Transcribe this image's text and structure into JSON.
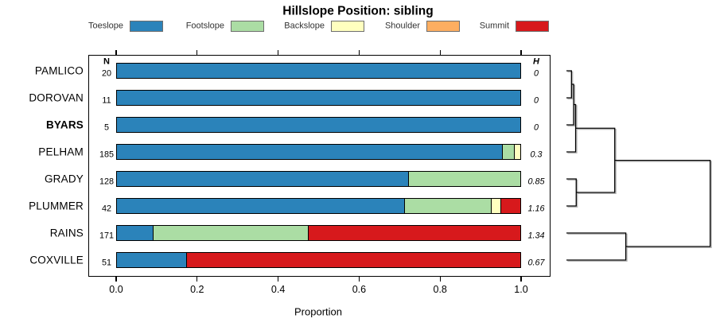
{
  "title": "Hillslope Position: sibling",
  "xlabel": "Proportion",
  "x_ticks": [
    "0.0",
    "0.2",
    "0.4",
    "0.6",
    "0.8",
    "1.0"
  ],
  "columns": {
    "n_header": "N",
    "h_header": "H"
  },
  "legend": [
    {
      "label": "Toeslope",
      "color": "#2B83BA"
    },
    {
      "label": "Footslope",
      "color": "#ABDDA4"
    },
    {
      "label": "Backslope",
      "color": "#FFFFBF"
    },
    {
      "label": "Shoulder",
      "color": "#FDAE61"
    },
    {
      "label": "Summit",
      "color": "#D7191C"
    }
  ],
  "rows": [
    {
      "name": "PAMLICO",
      "bold": false,
      "n": "20",
      "h": "0",
      "segments": [
        [
          "Toeslope",
          1.0
        ]
      ]
    },
    {
      "name": "DOROVAN",
      "bold": false,
      "n": "11",
      "h": "0",
      "segments": [
        [
          "Toeslope",
          1.0
        ]
      ]
    },
    {
      "name": "BYARS",
      "bold": true,
      "n": "5",
      "h": "0",
      "segments": [
        [
          "Toeslope",
          1.0
        ]
      ]
    },
    {
      "name": "PELHAM",
      "bold": false,
      "n": "185",
      "h": "0.3",
      "segments": [
        [
          "Toeslope",
          0.955
        ],
        [
          "Footslope",
          0.03
        ],
        [
          "Backslope",
          0.015
        ]
      ]
    },
    {
      "name": "GRADY",
      "bold": false,
      "n": "128",
      "h": "0.85",
      "segments": [
        [
          "Toeslope",
          0.723
        ],
        [
          "Footslope",
          0.277
        ]
      ]
    },
    {
      "name": "PLUMMER",
      "bold": false,
      "n": "42",
      "h": "1.16",
      "segments": [
        [
          "Toeslope",
          0.714
        ],
        [
          "Footslope",
          0.214
        ],
        [
          "Backslope",
          0.024
        ],
        [
          "Summit",
          0.048
        ]
      ]
    },
    {
      "name": "RAINS",
      "bold": false,
      "n": "171",
      "h": "1.34",
      "segments": [
        [
          "Toeslope",
          0.093
        ],
        [
          "Footslope",
          0.383
        ],
        [
          "Summit",
          0.524
        ]
      ]
    },
    {
      "name": "COXVILLE",
      "bold": false,
      "n": "51",
      "h": "0.67",
      "segments": [
        [
          "Toeslope",
          0.176
        ],
        [
          "Summit",
          0.824
        ]
      ]
    }
  ],
  "dendrogram": {
    "merges": [
      {
        "a": "PAMLICO",
        "b": "DOROVAN",
        "h": 0.035
      },
      {
        "a": "@0",
        "b": "BYARS",
        "h": 0.05
      },
      {
        "a": "@1",
        "b": "PELHAM",
        "h": 0.064
      },
      {
        "a": "GRADY",
        "b": "PLUMMER",
        "h": 0.068
      },
      {
        "a": "@2",
        "b": "@3",
        "h": 0.336
      },
      {
        "a": "RAINS",
        "b": "COXVILLE",
        "h": 0.413
      },
      {
        "a": "@4",
        "b": "@5",
        "h": 1.0
      }
    ]
  },
  "chart_data": {
    "type": "bar",
    "orientation": "horizontal-stacked",
    "title": "Hillslope Position: sibling",
    "xlabel": "Proportion",
    "xlim": [
      0,
      1
    ],
    "grid": false,
    "legend_position": "top",
    "categories": [
      "PAMLICO",
      "DOROVAN",
      "BYARS",
      "PELHAM",
      "GRADY",
      "PLUMMER",
      "RAINS",
      "COXVILLE"
    ],
    "series": [
      {
        "name": "Toeslope",
        "color": "#2B83BA",
        "values": [
          1.0,
          1.0,
          1.0,
          0.955,
          0.723,
          0.714,
          0.093,
          0.176
        ]
      },
      {
        "name": "Footslope",
        "color": "#ABDDA4",
        "values": [
          0,
          0,
          0,
          0.03,
          0.277,
          0.214,
          0.383,
          0
        ]
      },
      {
        "name": "Backslope",
        "color": "#FFFFBF",
        "values": [
          0,
          0,
          0,
          0.015,
          0,
          0.024,
          0,
          0
        ]
      },
      {
        "name": "Shoulder",
        "color": "#FDAE61",
        "values": [
          0,
          0,
          0,
          0,
          0,
          0,
          0,
          0
        ]
      },
      {
        "name": "Summit",
        "color": "#D7191C",
        "values": [
          0,
          0,
          0,
          0,
          0,
          0.048,
          0.524,
          0.824
        ]
      }
    ],
    "N": [
      20,
      11,
      5,
      185,
      128,
      42,
      171,
      51
    ],
    "H": [
      0,
      0,
      0,
      0.3,
      0.85,
      1.16,
      1.34,
      0.67
    ],
    "x_ticks": [
      0.0,
      0.2,
      0.4,
      0.6,
      0.8,
      1.0
    ],
    "dendrogram_order": [
      "PAMLICO",
      "DOROVAN",
      "BYARS",
      "PELHAM",
      "GRADY",
      "PLUMMER",
      "RAINS",
      "COXVILLE"
    ]
  }
}
